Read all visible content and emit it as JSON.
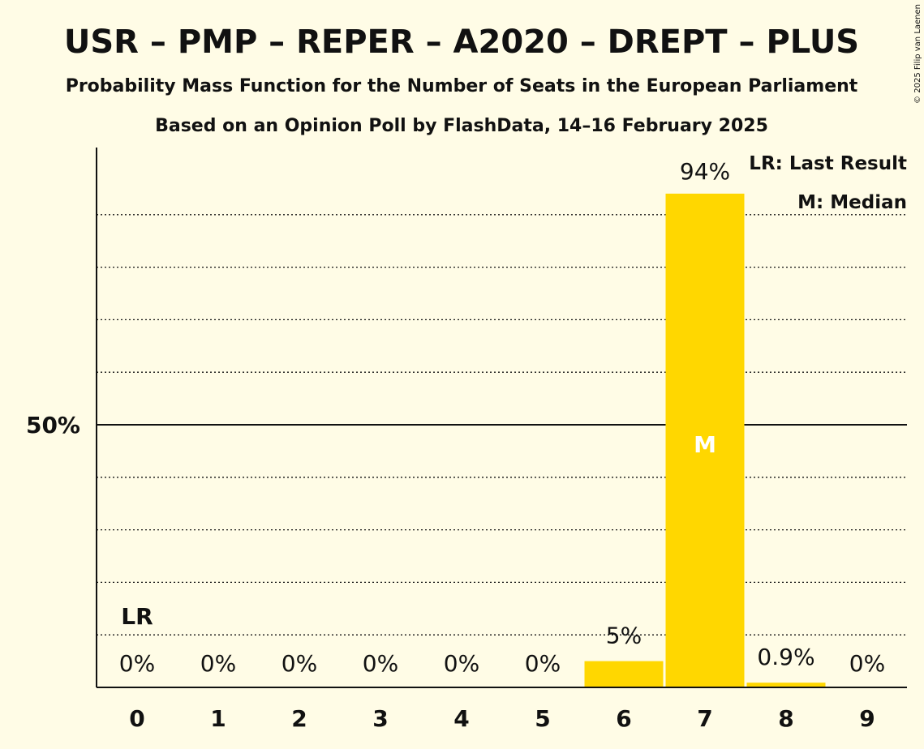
{
  "title": "USR – PMP – REPER – A2020 – DREPT – PLUS",
  "subtitle1": "Probability Mass Function for the Number of Seats in the European Parliament",
  "subtitle2": "Based on an Opinion Poll by FlashData, 14–16 February 2025",
  "copyright": "© 2025 Filip van Laenen",
  "legend": {
    "lr": "LR: Last Result",
    "median": "M: Median"
  },
  "colors": {
    "background": "#FFFCE6",
    "bar": "#FFD700",
    "text": "#111111"
  },
  "chart_data": {
    "type": "bar",
    "categories": [
      "0",
      "1",
      "2",
      "3",
      "4",
      "5",
      "6",
      "7",
      "8",
      "9"
    ],
    "values": [
      0,
      0,
      0,
      0,
      0,
      0,
      5,
      94,
      0.9,
      0
    ],
    "data_labels": [
      "0%",
      "0%",
      "0%",
      "0%",
      "0%",
      "0%",
      "5%",
      "94%",
      "0.9%",
      "0%"
    ],
    "y_ticks": [
      {
        "value": 50,
        "label": "50%"
      }
    ],
    "ylim": [
      0,
      100
    ],
    "gridlines": [
      10,
      20,
      30,
      40,
      60,
      70,
      80,
      90
    ],
    "last_result_category": "0",
    "last_result_marker": "LR",
    "median_category": "7",
    "median_marker": "M",
    "legend_position": "top-right"
  }
}
